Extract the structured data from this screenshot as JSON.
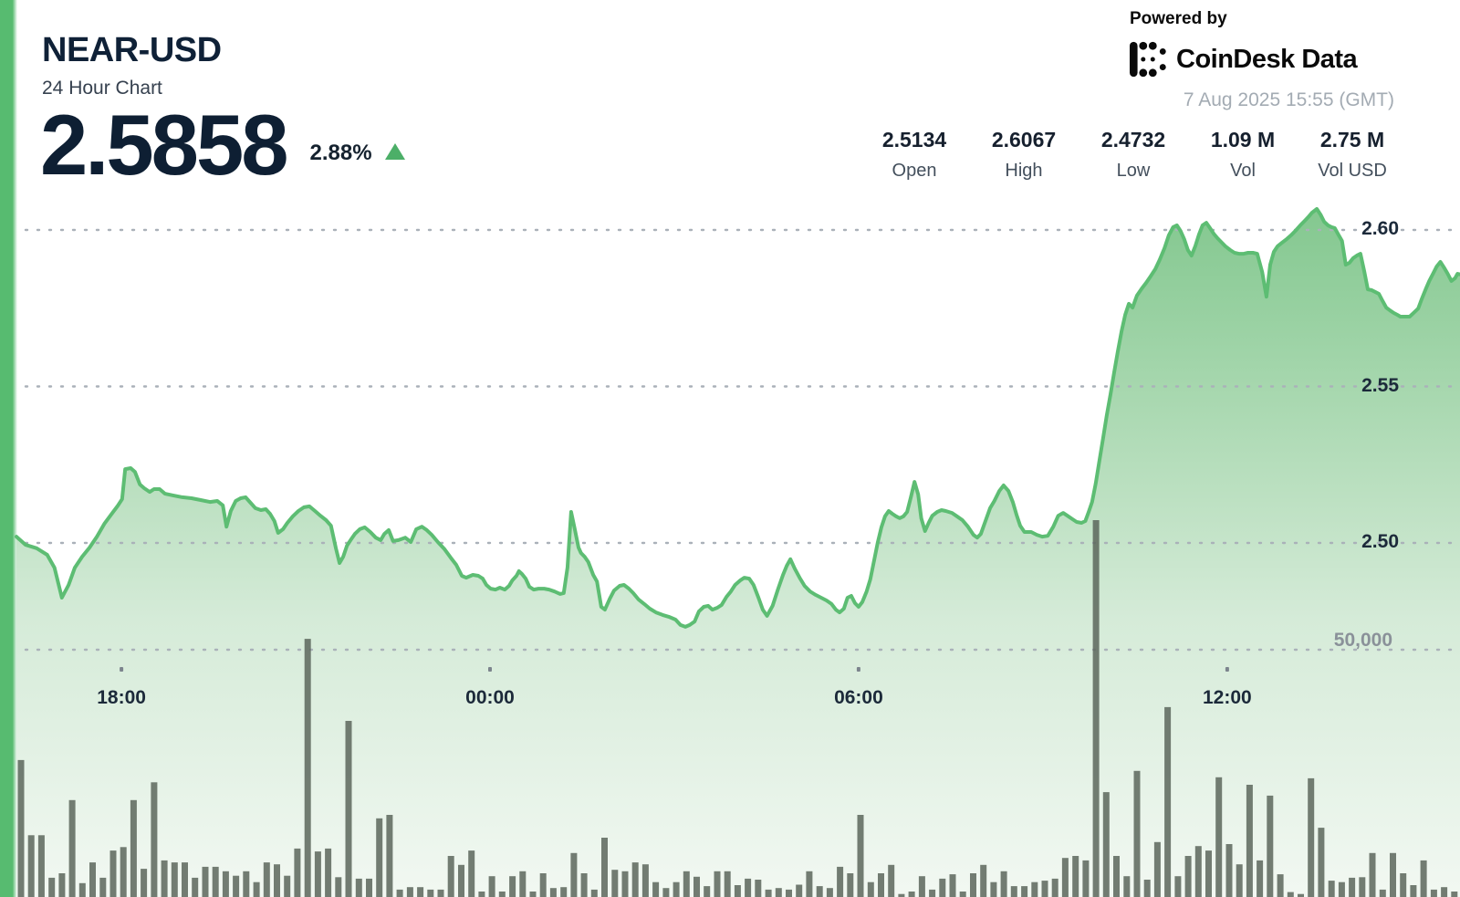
{
  "header": {
    "symbol": "NEAR-USD",
    "subtitle": "24 Hour Chart",
    "price": "2.5858",
    "change_percent": "2.88%",
    "change_direction": "up"
  },
  "powered_by": {
    "label": "Powered by",
    "brand": "CoinDesk Data",
    "timestamp": "7 Aug 2025 15:55 (GMT)"
  },
  "stats": [
    {
      "value": "2.5134",
      "label": "Open"
    },
    {
      "value": "2.6067",
      "label": "High"
    },
    {
      "value": "2.4732",
      "label": "Low"
    },
    {
      "value": "1.09 M",
      "label": "Vol"
    },
    {
      "value": "2.75 M",
      "label": "Vol USD"
    }
  ],
  "colors": {
    "accent_green": "#57bb70",
    "line_green": "#5dbd73",
    "up_green": "#4caf68",
    "volume_bar": "#5c665c",
    "grid_dot": "#aab1b9",
    "dark_navy": "#0f2137"
  },
  "chart_data": {
    "type": "area",
    "title": "NEAR-USD 24 Hour Chart",
    "xlabel": "",
    "ylabel": "",
    "grid": "dotted",
    "legend": "none",
    "x_axis": {
      "hours_span": 23.5,
      "ticks": [
        {
          "label": "18:00",
          "hours_from_start": 1.71
        },
        {
          "label": "00:00",
          "hours_from_start": 7.71
        },
        {
          "label": "06:00",
          "hours_from_start": 13.71
        },
        {
          "label": "12:00",
          "hours_from_start": 19.71
        }
      ]
    },
    "y_axis_price": {
      "ticks": [
        {
          "label": "2.60",
          "value": 2.6
        },
        {
          "label": "2.55",
          "value": 2.55
        },
        {
          "label": "2.50",
          "value": 2.5
        }
      ],
      "range": [
        2.455,
        2.613
      ]
    },
    "y_axis_volume": {
      "tick": {
        "label": "50,000",
        "value": 50000
      }
    },
    "price_series": [
      [
        0,
        2.502
      ],
      [
        0.15,
        2.4994
      ],
      [
        0.33,
        2.4983
      ],
      [
        0.5,
        2.4962
      ],
      [
        0.62,
        2.4921
      ],
      [
        0.74,
        2.4825
      ],
      [
        0.85,
        2.4866
      ],
      [
        0.95,
        2.4921
      ],
      [
        1.07,
        2.4956
      ],
      [
        1.19,
        2.4985
      ],
      [
        1.31,
        2.502
      ],
      [
        1.43,
        2.5061
      ],
      [
        1.54,
        2.509
      ],
      [
        1.65,
        2.5119
      ],
      [
        1.72,
        2.514
      ],
      [
        1.77,
        2.5236
      ],
      [
        1.86,
        2.5239
      ],
      [
        1.93,
        2.5227
      ],
      [
        2.01,
        2.5187
      ],
      [
        2.08,
        2.5175
      ],
      [
        2.17,
        2.5163
      ],
      [
        2.24,
        2.5172
      ],
      [
        2.33,
        2.5172
      ],
      [
        2.42,
        2.5157
      ],
      [
        2.55,
        2.5152
      ],
      [
        2.7,
        2.5146
      ],
      [
        2.85,
        2.5143
      ],
      [
        3.0,
        2.5137
      ],
      [
        3.15,
        2.5131
      ],
      [
        3.27,
        2.5134
      ],
      [
        3.36,
        2.512
      ],
      [
        3.42,
        2.5052
      ],
      [
        3.49,
        2.5102
      ],
      [
        3.57,
        2.5134
      ],
      [
        3.65,
        2.5143
      ],
      [
        3.73,
        2.5146
      ],
      [
        3.8,
        2.5131
      ],
      [
        3.89,
        2.5111
      ],
      [
        3.98,
        2.5105
      ],
      [
        4.06,
        2.5108
      ],
      [
        4.13,
        2.5093
      ],
      [
        4.2,
        2.507
      ],
      [
        4.26,
        2.5032
      ],
      [
        4.34,
        2.5044
      ],
      [
        4.41,
        2.5064
      ],
      [
        4.5,
        2.5085
      ],
      [
        4.59,
        2.5102
      ],
      [
        4.68,
        2.5114
      ],
      [
        4.77,
        2.5117
      ],
      [
        4.86,
        2.5102
      ],
      [
        4.95,
        2.5087
      ],
      [
        5.04,
        2.5073
      ],
      [
        5.12,
        2.5055
      ],
      [
        5.2,
        2.4983
      ],
      [
        5.26,
        2.4936
      ],
      [
        5.32,
        2.4956
      ],
      [
        5.38,
        2.4991
      ],
      [
        5.44,
        2.5009
      ],
      [
        5.51,
        2.5029
      ],
      [
        5.59,
        2.5044
      ],
      [
        5.67,
        2.505
      ],
      [
        5.76,
        2.5035
      ],
      [
        5.85,
        2.5017
      ],
      [
        5.93,
        2.5009
      ],
      [
        5.99,
        2.5029
      ],
      [
        6.06,
        2.5041
      ],
      [
        6.13,
        2.5006
      ],
      [
        6.22,
        2.5009
      ],
      [
        6.33,
        2.5017
      ],
      [
        6.42,
        2.5003
      ],
      [
        6.51,
        2.5044
      ],
      [
        6.6,
        2.5052
      ],
      [
        6.68,
        2.5041
      ],
      [
        6.76,
        2.5026
      ],
      [
        6.86,
        2.5003
      ],
      [
        6.97,
        2.498
      ],
      [
        7.07,
        2.4953
      ],
      [
        7.16,
        2.493
      ],
      [
        7.25,
        2.4895
      ],
      [
        7.32,
        2.4889
      ],
      [
        7.43,
        2.4898
      ],
      [
        7.52,
        2.4895
      ],
      [
        7.59,
        2.4886
      ],
      [
        7.65,
        2.4866
      ],
      [
        7.72,
        2.4854
      ],
      [
        7.8,
        2.4851
      ],
      [
        7.87,
        2.4857
      ],
      [
        7.95,
        2.4851
      ],
      [
        8.02,
        2.4863
      ],
      [
        8.07,
        2.488
      ],
      [
        8.14,
        2.4895
      ],
      [
        8.18,
        2.491
      ],
      [
        8.23,
        2.4901
      ],
      [
        8.29,
        2.4886
      ],
      [
        8.35,
        2.486
      ],
      [
        8.42,
        2.4851
      ],
      [
        8.5,
        2.4854
      ],
      [
        8.59,
        2.4854
      ],
      [
        8.67,
        2.4851
      ],
      [
        8.76,
        2.4845
      ],
      [
        8.85,
        2.4837
      ],
      [
        8.91,
        2.484
      ],
      [
        8.97,
        2.4921
      ],
      [
        9.03,
        2.5099
      ],
      [
        9.09,
        2.5044
      ],
      [
        9.15,
        2.4985
      ],
      [
        9.19,
        2.4968
      ],
      [
        9.25,
        2.4956
      ],
      [
        9.31,
        2.4939
      ],
      [
        9.39,
        2.4898
      ],
      [
        9.45,
        2.4877
      ],
      [
        9.52,
        2.4796
      ],
      [
        9.58,
        2.4787
      ],
      [
        9.66,
        2.4822
      ],
      [
        9.73,
        2.4848
      ],
      [
        9.82,
        2.4863
      ],
      [
        9.89,
        2.4866
      ],
      [
        9.97,
        2.4854
      ],
      [
        10.04,
        2.484
      ],
      [
        10.13,
        2.4819
      ],
      [
        10.22,
        2.4805
      ],
      [
        10.31,
        2.479
      ],
      [
        10.41,
        2.4778
      ],
      [
        10.52,
        2.477
      ],
      [
        10.62,
        2.4764
      ],
      [
        10.73,
        2.4755
      ],
      [
        10.81,
        2.4738
      ],
      [
        10.89,
        2.4732
      ],
      [
        10.96,
        2.4738
      ],
      [
        11.04,
        2.4749
      ],
      [
        11.11,
        2.4781
      ],
      [
        11.19,
        2.4796
      ],
      [
        11.26,
        2.4799
      ],
      [
        11.33,
        2.4787
      ],
      [
        11.41,
        2.4793
      ],
      [
        11.48,
        2.4802
      ],
      [
        11.56,
        2.4828
      ],
      [
        11.63,
        2.4845
      ],
      [
        11.7,
        2.4866
      ],
      [
        11.78,
        2.488
      ],
      [
        11.85,
        2.4889
      ],
      [
        11.93,
        2.4886
      ],
      [
        12.0,
        2.4866
      ],
      [
        12.08,
        2.4825
      ],
      [
        12.15,
        2.4787
      ],
      [
        12.22,
        2.4767
      ],
      [
        12.31,
        2.4799
      ],
      [
        12.4,
        2.4854
      ],
      [
        12.48,
        2.4898
      ],
      [
        12.54,
        2.4927
      ],
      [
        12.6,
        2.4948
      ],
      [
        12.67,
        2.4918
      ],
      [
        12.75,
        2.4889
      ],
      [
        12.83,
        2.4863
      ],
      [
        12.92,
        2.4845
      ],
      [
        13.01,
        2.4834
      ],
      [
        13.1,
        2.4825
      ],
      [
        13.19,
        2.4816
      ],
      [
        13.27,
        2.4805
      ],
      [
        13.34,
        2.4787
      ],
      [
        13.4,
        2.4778
      ],
      [
        13.47,
        2.479
      ],
      [
        13.53,
        2.4825
      ],
      [
        13.59,
        2.4831
      ],
      [
        13.65,
        2.4808
      ],
      [
        13.71,
        2.4796
      ],
      [
        13.77,
        2.4811
      ],
      [
        13.84,
        2.4845
      ],
      [
        13.9,
        2.4883
      ],
      [
        13.96,
        2.4942
      ],
      [
        14.02,
        2.5
      ],
      [
        14.08,
        2.505
      ],
      [
        14.14,
        2.5085
      ],
      [
        14.2,
        2.5102
      ],
      [
        14.26,
        2.5093
      ],
      [
        14.32,
        2.5085
      ],
      [
        14.38,
        2.5079
      ],
      [
        14.44,
        2.5085
      ],
      [
        14.5,
        2.5099
      ],
      [
        14.56,
        2.5146
      ],
      [
        14.62,
        2.5195
      ],
      [
        14.68,
        2.5155
      ],
      [
        14.73,
        2.5079
      ],
      [
        14.79,
        2.5038
      ],
      [
        14.85,
        2.5064
      ],
      [
        14.91,
        2.5087
      ],
      [
        14.99,
        2.5099
      ],
      [
        15.06,
        2.5105
      ],
      [
        15.13,
        2.5102
      ],
      [
        15.23,
        2.5096
      ],
      [
        15.31,
        2.5085
      ],
      [
        15.4,
        2.5073
      ],
      [
        15.49,
        2.5052
      ],
      [
        15.58,
        2.5026
      ],
      [
        15.64,
        2.5017
      ],
      [
        15.7,
        2.5029
      ],
      [
        15.78,
        2.5073
      ],
      [
        15.85,
        2.5111
      ],
      [
        15.92,
        2.5134
      ],
      [
        16.0,
        2.5166
      ],
      [
        16.07,
        2.5184
      ],
      [
        16.15,
        2.5166
      ],
      [
        16.22,
        2.5131
      ],
      [
        16.28,
        2.509
      ],
      [
        16.34,
        2.5055
      ],
      [
        16.41,
        2.5035
      ],
      [
        16.52,
        2.5035
      ],
      [
        16.61,
        2.5026
      ],
      [
        16.7,
        2.502
      ],
      [
        16.79,
        2.5023
      ],
      [
        16.88,
        2.5052
      ],
      [
        16.96,
        2.5087
      ],
      [
        17.04,
        2.5096
      ],
      [
        17.11,
        2.5087
      ],
      [
        17.19,
        2.5076
      ],
      [
        17.26,
        2.5067
      ],
      [
        17.34,
        2.5064
      ],
      [
        17.4,
        2.507
      ],
      [
        17.45,
        2.5096
      ],
      [
        17.51,
        2.5131
      ],
      [
        17.57,
        2.519
      ],
      [
        17.63,
        2.5262
      ],
      [
        17.69,
        2.5335
      ],
      [
        17.75,
        2.5408
      ],
      [
        17.81,
        2.5475
      ],
      [
        17.87,
        2.5545
      ],
      [
        17.93,
        2.5612
      ],
      [
        17.99,
        2.5676
      ],
      [
        18.05,
        2.5729
      ],
      [
        18.11,
        2.5764
      ],
      [
        18.17,
        2.5752
      ],
      [
        18.24,
        2.579
      ],
      [
        18.32,
        2.5813
      ],
      [
        18.39,
        2.5831
      ],
      [
        18.46,
        2.5851
      ],
      [
        18.54,
        2.5875
      ],
      [
        18.61,
        2.5904
      ],
      [
        18.69,
        2.5942
      ],
      [
        18.76,
        2.5983
      ],
      [
        18.83,
        2.6009
      ],
      [
        18.89,
        2.6015
      ],
      [
        18.95,
        2.5997
      ],
      [
        19.01,
        2.5971
      ],
      [
        19.07,
        2.5936
      ],
      [
        19.13,
        2.5918
      ],
      [
        19.19,
        2.5948
      ],
      [
        19.25,
        2.5985
      ],
      [
        19.31,
        2.6015
      ],
      [
        19.37,
        2.6023
      ],
      [
        19.43,
        2.6006
      ],
      [
        19.49,
        2.5988
      ],
      [
        19.55,
        2.5974
      ],
      [
        19.61,
        2.5962
      ],
      [
        19.68,
        2.5948
      ],
      [
        19.76,
        2.5936
      ],
      [
        19.83,
        2.5927
      ],
      [
        19.9,
        2.5924
      ],
      [
        19.98,
        2.5924
      ],
      [
        20.05,
        2.5927
      ],
      [
        20.13,
        2.5927
      ],
      [
        20.2,
        2.5924
      ],
      [
        20.28,
        2.5866
      ],
      [
        20.35,
        2.5787
      ],
      [
        20.41,
        2.5889
      ],
      [
        20.47,
        2.593
      ],
      [
        20.53,
        2.5948
      ],
      [
        20.6,
        2.5959
      ],
      [
        20.68,
        2.5971
      ],
      [
        20.75,
        2.5983
      ],
      [
        20.82,
        2.5997
      ],
      [
        20.9,
        2.6015
      ],
      [
        20.97,
        2.6029
      ],
      [
        21.03,
        2.6041
      ],
      [
        21.09,
        2.6055
      ],
      [
        21.17,
        2.6067
      ],
      [
        21.23,
        2.6049
      ],
      [
        21.29,
        2.6026
      ],
      [
        21.35,
        2.6015
      ],
      [
        21.41,
        2.6009
      ],
      [
        21.46,
        2.6006
      ],
      [
        21.52,
        2.5985
      ],
      [
        21.58,
        2.5965
      ],
      [
        21.64,
        2.5889
      ],
      [
        21.7,
        2.5895
      ],
      [
        21.76,
        2.591
      ],
      [
        21.82,
        2.5918
      ],
      [
        21.88,
        2.5924
      ],
      [
        21.94,
        2.5869
      ],
      [
        22.0,
        2.581
      ],
      [
        22.06,
        2.5808
      ],
      [
        22.12,
        2.5802
      ],
      [
        22.18,
        2.5796
      ],
      [
        22.24,
        2.5773
      ],
      [
        22.3,
        2.5752
      ],
      [
        22.36,
        2.5743
      ],
      [
        22.42,
        2.5735
      ],
      [
        22.48,
        2.5729
      ],
      [
        22.53,
        2.5723
      ],
      [
        22.61,
        2.5723
      ],
      [
        22.68,
        2.5723
      ],
      [
        22.76,
        2.5738
      ],
      [
        22.82,
        2.5749
      ],
      [
        22.88,
        2.5781
      ],
      [
        22.94,
        2.581
      ],
      [
        23.0,
        2.5837
      ],
      [
        23.06,
        2.586
      ],
      [
        23.12,
        2.5883
      ],
      [
        23.18,
        2.5898
      ],
      [
        23.24,
        2.588
      ],
      [
        23.3,
        2.586
      ],
      [
        23.36,
        2.5837
      ],
      [
        23.42,
        2.5846
      ],
      [
        23.46,
        2.586
      ],
      [
        23.5,
        2.5858
      ]
    ],
    "volume_interval_minutes": 10,
    "volume_series": [
      27700,
      12500,
      12500,
      3900,
      4800,
      19600,
      2800,
      7000,
      3900,
      9400,
      10100,
      19600,
      5700,
      23200,
      7400,
      7000,
      7000,
      3900,
      6100,
      6100,
      5200,
      4300,
      5200,
      3000,
      7000,
      6600,
      4300,
      9800,
      52200,
      9200,
      9800,
      4000,
      35600,
      3700,
      3700,
      15900,
      16600,
      1500,
      2000,
      2000,
      1500,
      1500,
      8300,
      6500,
      9400,
      1100,
      4200,
      1100,
      4200,
      5200,
      1100,
      4800,
      1800,
      2000,
      8900,
      4800,
      1500,
      12000,
      5500,
      5200,
      7000,
      6600,
      3000,
      1800,
      3000,
      5200,
      4100,
      2200,
      5200,
      5200,
      2400,
      3700,
      3500,
      1500,
      1800,
      1500,
      2500,
      5200,
      2200,
      1800,
      6100,
      4800,
      16600,
      3000,
      4800,
      6500,
      600,
      1100,
      4200,
      1500,
      3700,
      4600,
      1100,
      4800,
      6500,
      3000,
      5200,
      2200,
      2200,
      3000,
      3300,
      3700,
      7900,
      8300,
      7400,
      76200,
      21200,
      8300,
      4200,
      25500,
      3500,
      11100,
      38400,
      4200,
      8300,
      10300,
      9400,
      24200,
      10700,
      6600,
      22700,
      7400,
      20500,
      4600,
      1000,
      600,
      24000,
      14000,
      3300,
      3000,
      3900,
      4000,
      8900,
      1500,
      8900,
      4800,
      2400,
      7400,
      1500,
      2000,
      1100
    ]
  }
}
